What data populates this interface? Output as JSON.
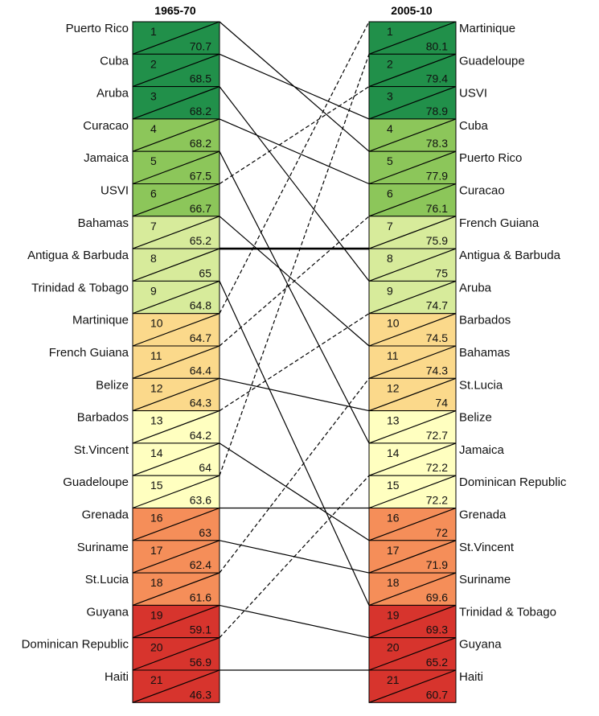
{
  "chart_data": {
    "type": "table",
    "columns": [
      {
        "header": "1965-70",
        "rows": [
          {
            "rank": "1",
            "country": "Puerto Rico",
            "value": "70.7"
          },
          {
            "rank": "2",
            "country": "Cuba",
            "value": "68.5"
          },
          {
            "rank": "3",
            "country": "Aruba",
            "value": "68.2"
          },
          {
            "rank": "4",
            "country": "Curacao",
            "value": "68.2"
          },
          {
            "rank": "5",
            "country": "Jamaica",
            "value": "67.5"
          },
          {
            "rank": "6",
            "country": "USVI",
            "value": "66.7"
          },
          {
            "rank": "7",
            "country": "Bahamas",
            "value": "65.2"
          },
          {
            "rank": "8",
            "country": "Antigua & Barbuda",
            "value": "65"
          },
          {
            "rank": "9",
            "country": "Trinidad & Tobago",
            "value": "64.8"
          },
          {
            "rank": "10",
            "country": "Martinique",
            "value": "64.7"
          },
          {
            "rank": "11",
            "country": "French Guiana",
            "value": "64.4"
          },
          {
            "rank": "12",
            "country": "Belize",
            "value": "64.3"
          },
          {
            "rank": "13",
            "country": "Barbados",
            "value": "64.2"
          },
          {
            "rank": "14",
            "country": "St.Vincent",
            "value": "64"
          },
          {
            "rank": "15",
            "country": "Guadeloupe",
            "value": "63.6"
          },
          {
            "rank": "16",
            "country": "Grenada",
            "value": "63"
          },
          {
            "rank": "17",
            "country": "Suriname",
            "value": "62.4"
          },
          {
            "rank": "18",
            "country": "St.Lucia",
            "value": "61.6"
          },
          {
            "rank": "19",
            "country": "Guyana",
            "value": "59.1"
          },
          {
            "rank": "20",
            "country": "Dominican Republic",
            "value": "56.9"
          },
          {
            "rank": "21",
            "country": "Haiti",
            "value": "46.3"
          }
        ]
      },
      {
        "header": "2005-10",
        "rows": [
          {
            "rank": "1",
            "country": "Martinique",
            "value": "80.1"
          },
          {
            "rank": "2",
            "country": "Guadeloupe",
            "value": "79.4"
          },
          {
            "rank": "3",
            "country": "USVI",
            "value": "78.9"
          },
          {
            "rank": "4",
            "country": "Cuba",
            "value": "78.3"
          },
          {
            "rank": "5",
            "country": "Puerto Rico",
            "value": "77.9"
          },
          {
            "rank": "6",
            "country": "Curacao",
            "value": "76.1"
          },
          {
            "rank": "7",
            "country": "French Guiana",
            "value": "75.9"
          },
          {
            "rank": "8",
            "country": "Antigua & Barbuda",
            "value": "75"
          },
          {
            "rank": "9",
            "country": "Aruba",
            "value": "74.7"
          },
          {
            "rank": "10",
            "country": "Barbados",
            "value": "74.5"
          },
          {
            "rank": "11",
            "country": "Bahamas",
            "value": "74.3"
          },
          {
            "rank": "12",
            "country": "St.Lucia",
            "value": "74"
          },
          {
            "rank": "13",
            "country": "Belize",
            "value": "72.7"
          },
          {
            "rank": "14",
            "country": "Jamaica",
            "value": "72.2"
          },
          {
            "rank": "15",
            "country": "Dominican Republic",
            "value": "72.2"
          },
          {
            "rank": "16",
            "country": "Grenada",
            "value": "72"
          },
          {
            "rank": "17",
            "country": "St.Vincent",
            "value": "71.9"
          },
          {
            "rank": "18",
            "country": "Suriname",
            "value": "69.6"
          },
          {
            "rank": "19",
            "country": "Trinidad & Tobago",
            "value": "69.3"
          },
          {
            "rank": "20",
            "country": "Guyana",
            "value": "65.2"
          },
          {
            "rank": "21",
            "country": "Haiti",
            "value": "60.7"
          }
        ]
      }
    ],
    "rank_colors": {
      "1-3": "#21904a",
      "4-6": "#8cc65a",
      "7-9": "#d7eb9b",
      "10-12": "#fbd98b",
      "13-15": "#ffffc0",
      "16-18": "#f58e59",
      "19-21": "#d7342d"
    },
    "connector_styles": {
      "rank_up": "dashed",
      "rank_down": "solid",
      "unchanged": "solid",
      "unchanged_bold": [
        "Antigua & Barbuda"
      ]
    }
  }
}
